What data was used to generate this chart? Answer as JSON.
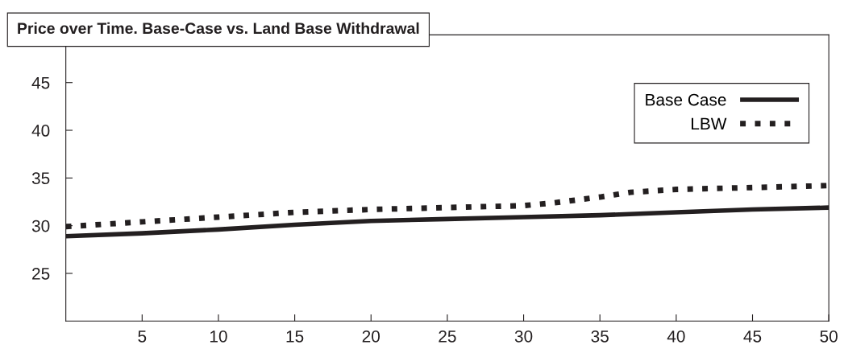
{
  "chart_data": {
    "type": "line",
    "title": "Price over Time. Base-Case vs. Land Base Withdrawal",
    "xlim": [
      0,
      50
    ],
    "xticks": [
      5,
      10,
      15,
      20,
      25,
      30,
      35,
      40,
      45,
      50
    ],
    "ylim": [
      20,
      50
    ],
    "yticks": [
      25,
      30,
      35,
      40,
      45
    ],
    "grid": false,
    "legend": "top right",
    "marker": "none",
    "series": [
      {
        "name": "Base Case",
        "color": "#231f20",
        "line_style": "solid",
        "x": [
          0,
          5,
          10,
          15,
          20,
          25,
          30,
          35,
          40,
          45,
          50
        ],
        "values": [
          28.9,
          29.2,
          29.6,
          30.1,
          30.5,
          30.7,
          30.9,
          31.1,
          31.4,
          31.7,
          31.9
        ]
      },
      {
        "name": "LBW",
        "color": "#231f20",
        "line_style": "dotted",
        "x": [
          0,
          5,
          10,
          15,
          20,
          25,
          30,
          32,
          35,
          37,
          40,
          45,
          50
        ],
        "values": [
          29.9,
          30.4,
          30.9,
          31.4,
          31.7,
          31.9,
          32.1,
          32.4,
          33.0,
          33.5,
          33.8,
          34.0,
          34.2
        ]
      }
    ]
  }
}
